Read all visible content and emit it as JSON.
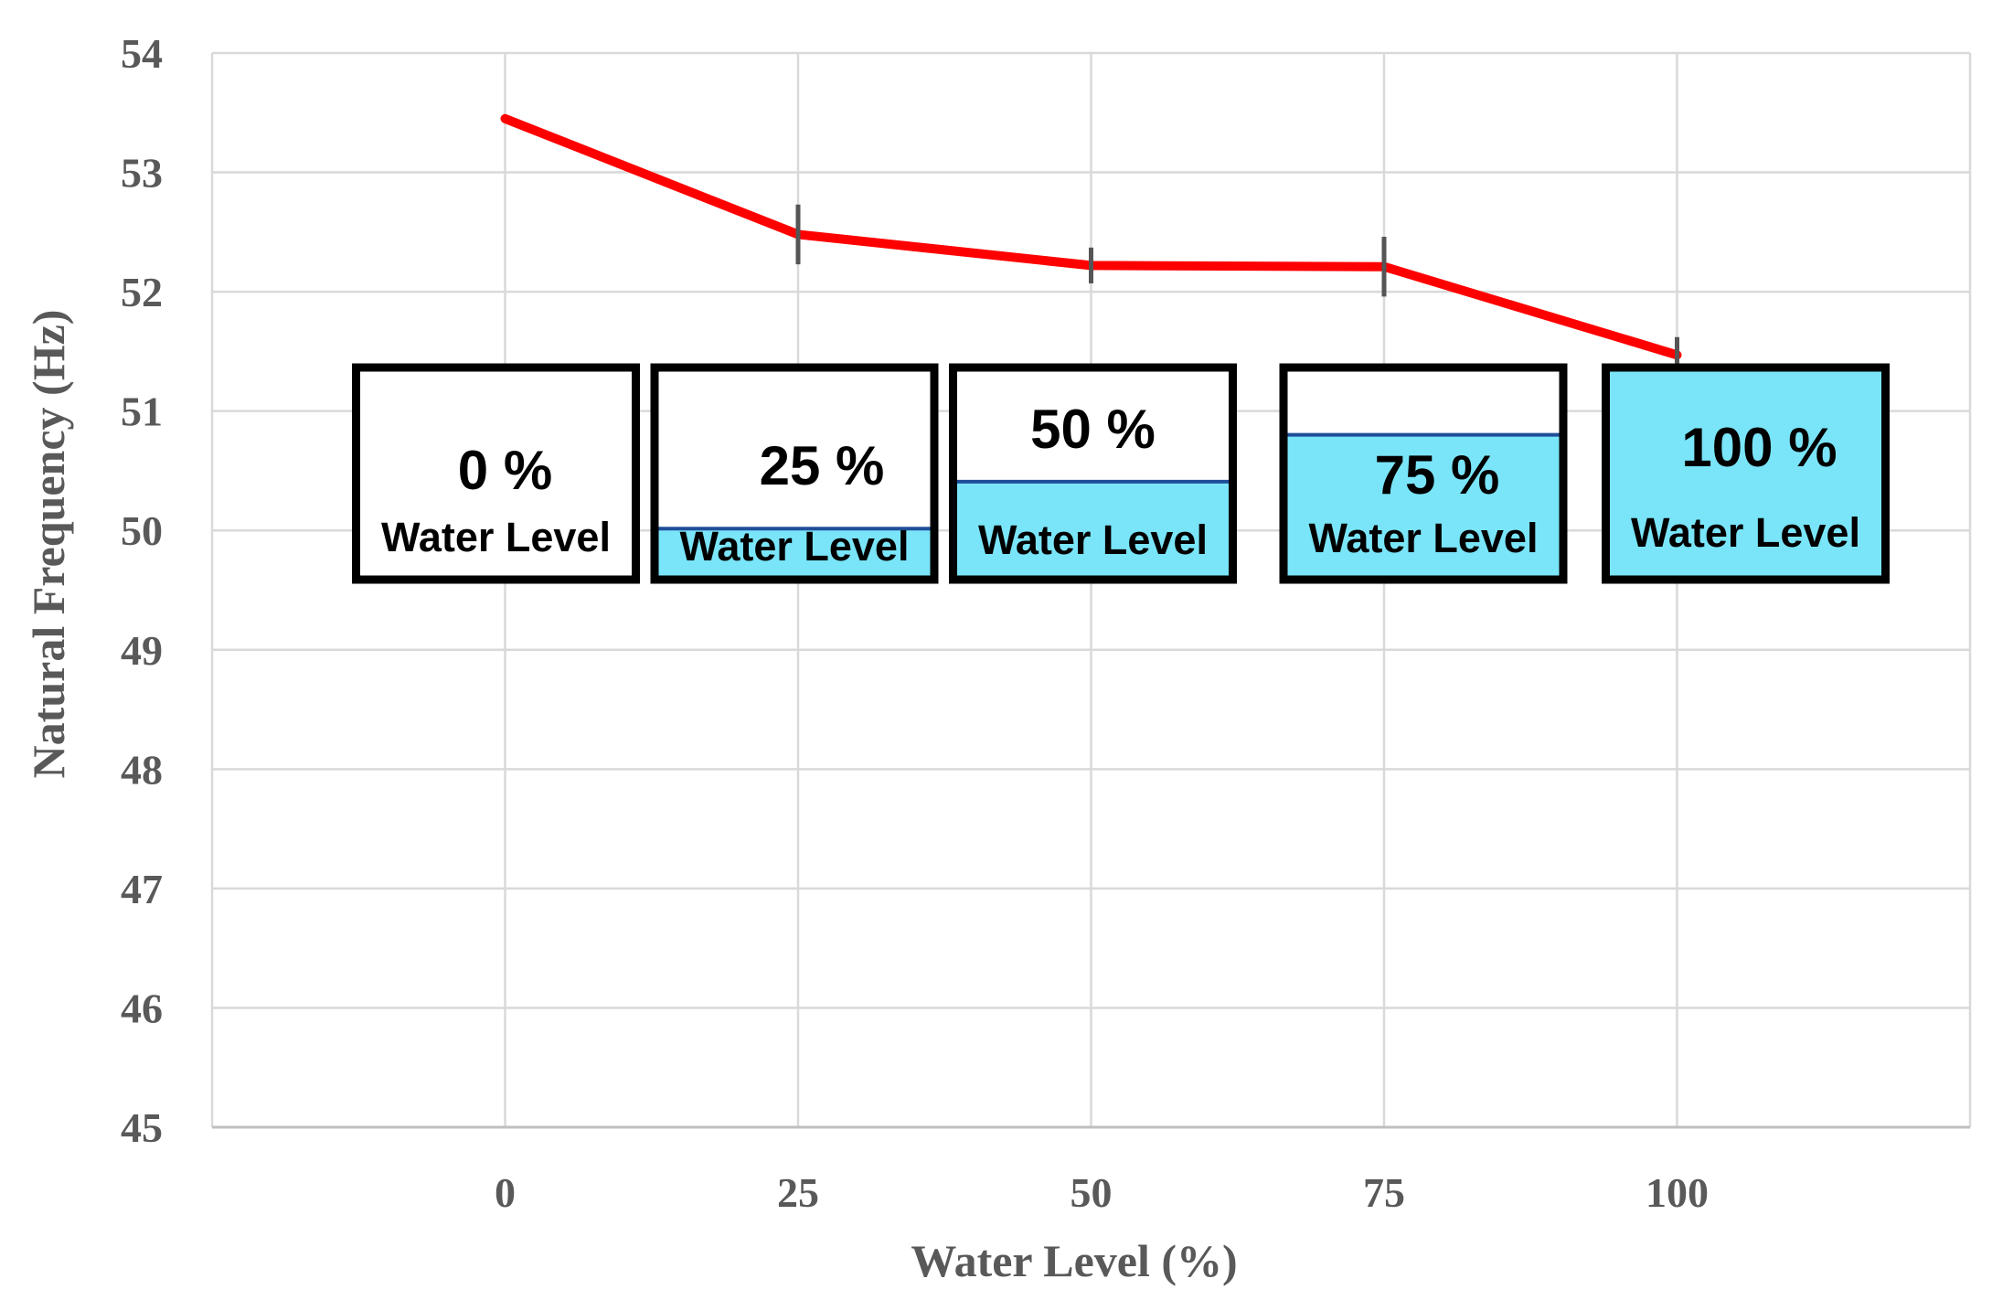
{
  "chart_data": {
    "type": "line",
    "title": "",
    "xlabel": "Water Level (%)",
    "ylabel": "Natural Frequency (Hz)",
    "x": [
      0,
      25,
      50,
      75,
      100
    ],
    "categories": [
      "0",
      "25",
      "50",
      "75",
      "100"
    ],
    "yticks": [
      "45",
      "46",
      "47",
      "48",
      "49",
      "50",
      "51",
      "52",
      "53",
      "54"
    ],
    "ylim": [
      45,
      54
    ],
    "xlim": [
      -25,
      125
    ],
    "grid": true,
    "series": [
      {
        "name": "Natural Frequency",
        "values": [
          53.45,
          52.48,
          52.22,
          52.21,
          51.47
        ],
        "error": [
          0,
          0.25,
          0.15,
          0.25,
          0.15
        ],
        "color": "#ff0000"
      }
    ],
    "annotations": [
      {
        "x": 0,
        "fill": 0,
        "label": "0 %",
        "caption": "Water Level"
      },
      {
        "x": 25,
        "fill": 0.25,
        "label": "25 %",
        "caption": "Water Level"
      },
      {
        "x": 50,
        "fill": 0.5,
        "label": "50 %",
        "caption": "Water Level"
      },
      {
        "x": 75,
        "fill": 0.75,
        "label": "75 %",
        "caption": "Water Level"
      },
      {
        "x": 100,
        "fill": 1.0,
        "label": "100 %",
        "caption": "Water Level"
      }
    ],
    "colors": {
      "line": "#ff0000",
      "water": "#7ae5f8",
      "water_edge": "#1f4e99",
      "grid": "#d9d9d9",
      "error": "#555555"
    }
  }
}
